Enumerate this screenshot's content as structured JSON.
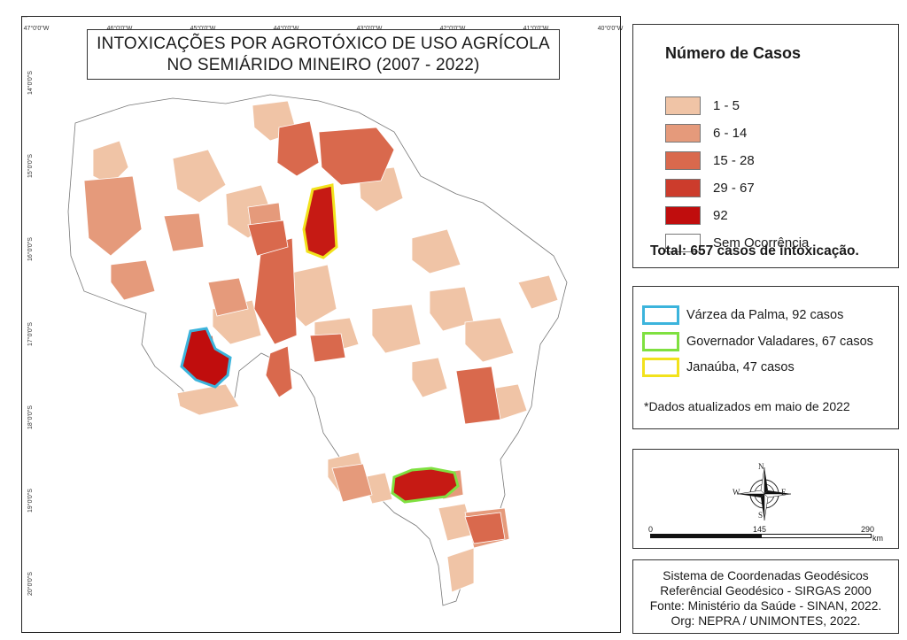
{
  "title": {
    "line1": "INTOXICAÇÕES POR AGROTÓXICO DE USO AGRÍCOLA",
    "line2": "NO SEMIÁRIDO MINEIRO (2007 - 2022)"
  },
  "graticule": {
    "longitudes": [
      "47°0'0\"W",
      "46°0'0\"W",
      "45°0'0\"W",
      "44°0'0\"W",
      "43°0'0\"W",
      "42°0'0\"W",
      "41°0'0\"W",
      "40°0'0\"W"
    ],
    "latitudes": [
      "14°0'0\"S",
      "15°0'0\"S",
      "16°0'0\"S",
      "17°0'0\"S",
      "18°0'0\"S",
      "19°0'0\"S",
      "20°0'0\"S"
    ]
  },
  "legend": {
    "title": "Número de Casos",
    "classes": [
      {
        "label": "1 - 5",
        "color": "#f0c4a6"
      },
      {
        "label": "6 - 14",
        "color": "#e59a7b"
      },
      {
        "label": "15 - 28",
        "color": "#d9694d"
      },
      {
        "label": "29 - 67",
        "color": "#cc3c2c"
      },
      {
        "label": "92",
        "color": "#c00d0d"
      },
      {
        "label": "Sem Ocorrência",
        "color": "#ffffff"
      }
    ],
    "total": "Total: 657 casos de intoxicação."
  },
  "highlights": {
    "items": [
      {
        "label": "Várzea da Palma, 92 casos",
        "color": "#3cb4dc"
      },
      {
        "label": "Governador Valadares, 67 casos",
        "color": "#7fe040"
      },
      {
        "label": "Janaúba, 47 casos",
        "color": "#f2e21c"
      }
    ],
    "note": "*Dados atualizados em maio de 2022"
  },
  "north_arrow": {
    "n": "N",
    "s": "S",
    "e": "E",
    "w": "W"
  },
  "scale_bar": {
    "labels": [
      "0",
      "145",
      "290"
    ],
    "unit": "km"
  },
  "credits": {
    "line1": "Sistema de Coordenadas Geodésicos",
    "line2": "Referêncial Geodésico - SIRGAS 2000",
    "line3": "Fonte: Ministério da Saúde - SINAN, 2022.",
    "line4": "Org: NEPRA / UNIMONTES, 2022."
  }
}
